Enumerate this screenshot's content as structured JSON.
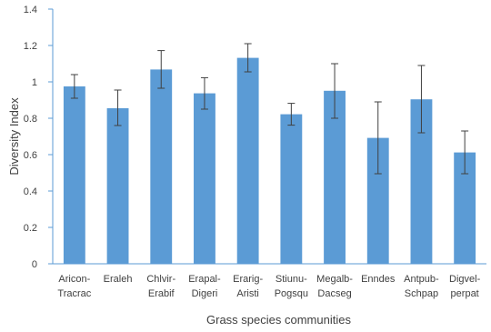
{
  "chart_data": {
    "type": "bar",
    "title": "",
    "xlabel": "Grass species communities",
    "ylabel": "Diversity Index",
    "ylim": [
      0,
      1.4
    ],
    "yticks": [
      "0",
      "0.2",
      "0.4",
      "0.6",
      "0.8",
      "1",
      "1.2",
      "1.4"
    ],
    "grid": false,
    "legend": "none",
    "bar_color": "#5b9bd5",
    "categories": [
      [
        "Aricon-",
        "Tracrac"
      ],
      [
        "Eraleh"
      ],
      [
        "Chlvir-",
        "Erabif"
      ],
      [
        "Erapal-",
        "Digeri"
      ],
      [
        "Erarig-",
        "Aristi"
      ],
      [
        "Stiunu-",
        "Pogsqu"
      ],
      [
        "Megalb-",
        "Dacseg"
      ],
      [
        "Enndes"
      ],
      [
        "Antpub-",
        "Schpap"
      ],
      [
        "Digvel-",
        "perpat"
      ]
    ],
    "values": [
      0.975,
      0.855,
      1.068,
      0.937,
      1.132,
      0.822,
      0.951,
      0.692,
      0.904,
      0.612
    ],
    "error_upper": [
      1.04,
      0.955,
      1.172,
      1.023,
      1.21,
      0.882,
      1.1,
      0.89,
      1.09,
      0.73
    ],
    "error_lower": [
      0.91,
      0.76,
      0.965,
      0.85,
      1.055,
      0.762,
      0.8,
      0.495,
      0.72,
      0.495
    ]
  }
}
